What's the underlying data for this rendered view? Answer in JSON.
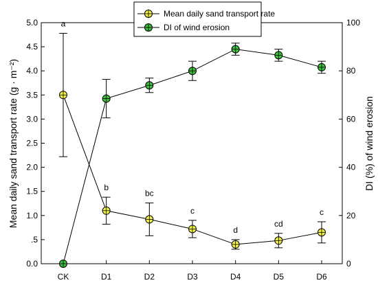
{
  "chart_data": {
    "type": "line",
    "categories": [
      "CK",
      "D1",
      "D2",
      "D3",
      "D4",
      "D5",
      "D6"
    ],
    "y_left": {
      "label": "Mean daily sand transport rate (g · m⁻²)",
      "ylim": [
        0,
        5.0
      ],
      "ticks": [
        0.0,
        0.5,
        1.0,
        1.5,
        2.0,
        2.5,
        3.0,
        3.5,
        4.0,
        4.5,
        5.0
      ],
      "tick_labels": [
        "0.0",
        ".5",
        "1.0",
        "1.5",
        "2.0",
        "2.5",
        "3.0",
        "3.5",
        "4.0",
        "4.5",
        "5.0"
      ]
    },
    "y_right": {
      "label": "DI (%) of wind erosion",
      "ylim": [
        0,
        100
      ],
      "ticks": [
        0,
        20,
        40,
        60,
        80,
        100
      ],
      "tick_labels": [
        "0",
        "20",
        "40",
        "60",
        "80",
        "100"
      ]
    },
    "series": [
      {
        "name": "Mean daily sand  transport rate",
        "axis": "left",
        "marker_color": "#f0f046",
        "values": [
          3.5,
          1.1,
          0.92,
          0.72,
          0.4,
          0.48,
          0.65
        ],
        "error": [
          1.28,
          0.28,
          0.34,
          0.18,
          0.1,
          0.15,
          0.22
        ],
        "significance": [
          "a",
          "b",
          "bc",
          "c",
          "d",
          "cd",
          "c"
        ]
      },
      {
        "name": "DI of wind erosion",
        "axis": "right",
        "marker_color": "#3cbe3c",
        "values": [
          0,
          68.5,
          74,
          80,
          89,
          86.5,
          81.5
        ],
        "error": [
          0,
          8,
          3,
          4,
          2.5,
          2.5,
          2.5
        ]
      }
    ],
    "legend_position": "top-center",
    "grid": false
  }
}
